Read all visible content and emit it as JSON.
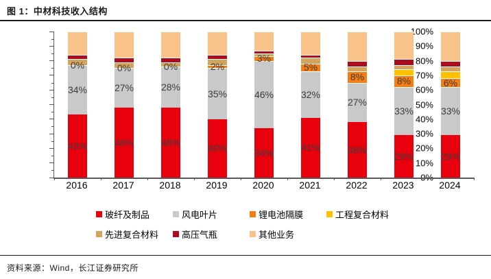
{
  "figure": {
    "title": "图 1：中材科技收入结构",
    "source": "资料来源：Wind，长江证券研究所"
  },
  "chart_data": {
    "type": "bar",
    "subtype": "stacked-100-percent",
    "title": "中材科技收入结构",
    "xlabel": "",
    "ylabel": "",
    "ylim": [
      0,
      100
    ],
    "y_tick_labels": [
      "0%",
      "10%",
      "20%",
      "30%",
      "40%",
      "50%",
      "60%",
      "70%",
      "80%",
      "90%",
      "100%"
    ],
    "grid": false,
    "legend_position": "bottom",
    "categories": [
      "2016",
      "2017",
      "2018",
      "2019",
      "2020",
      "2021",
      "2022",
      "2023",
      "2024"
    ],
    "series": [
      {
        "name": "玻纤及制品",
        "color": "#e8000d",
        "labeled": true,
        "values": [
          43,
          48,
          48,
          40,
          34,
          41,
          38,
          29,
          29
        ]
      },
      {
        "name": "风电叶片",
        "color": "#c9c9c9",
        "labeled": true,
        "values": [
          34,
          27,
          28,
          35,
          46,
          32,
          27,
          33,
          33
        ]
      },
      {
        "name": "锂电池隔膜",
        "color": "#f87d10",
        "labeled": true,
        "values": [
          0,
          0,
          0,
          2,
          3,
          5,
          8,
          8,
          6
        ]
      },
      {
        "name": "工程复合材料",
        "color": "#ffc000",
        "labeled": false,
        "values": [
          0,
          0,
          0,
          0,
          0,
          0,
          0,
          4,
          5
        ]
      },
      {
        "name": "先进复合材料",
        "color": "#d5a45c",
        "labeled": false,
        "values": [
          4,
          4,
          3,
          4,
          2,
          4,
          3,
          3,
          3
        ]
      },
      {
        "name": "高压气瓶",
        "color": "#ad0c1e",
        "labeled": false,
        "values": [
          3,
          3,
          3,
          3,
          2,
          2,
          4,
          4,
          4
        ]
      },
      {
        "name": "其他业务",
        "color": "#f8c288",
        "labeled": false,
        "values": [
          16,
          18,
          18,
          16,
          13,
          16,
          20,
          19,
          20
        ]
      }
    ],
    "axis_color": "#595959",
    "label_color": "#3d3d3d"
  }
}
